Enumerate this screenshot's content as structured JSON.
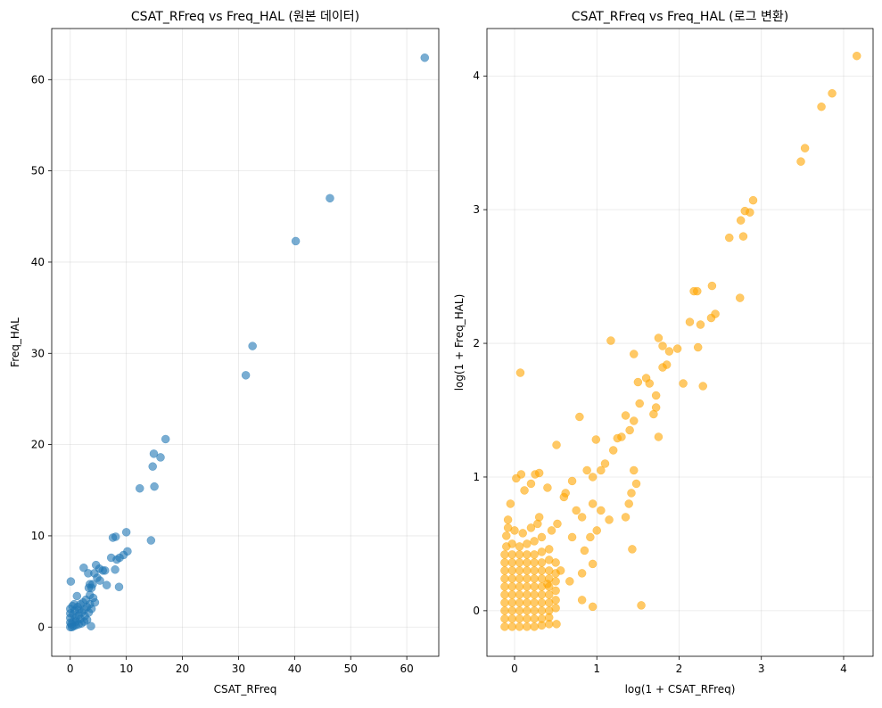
{
  "chart_data": [
    {
      "type": "scatter",
      "title": "CSAT_RFreq vs Freq_HAL (원본 데이터)",
      "xlabel": "CSAT_RFreq",
      "ylabel": "Freq_HAL",
      "xlim": [
        -3.3,
        65.7
      ],
      "ylim": [
        -3.2,
        65.6
      ],
      "xticks": [
        0,
        10,
        20,
        30,
        40,
        50,
        60
      ],
      "yticks": [
        0,
        10,
        20,
        30,
        40,
        50,
        60
      ],
      "grid": true,
      "color": "#1f77b4",
      "alpha": 0.6,
      "points": [
        [
          63.2,
          62.4
        ],
        [
          46.3,
          47.0
        ],
        [
          40.2,
          42.3
        ],
        [
          32.5,
          30.8
        ],
        [
          31.3,
          27.6
        ],
        [
          17.0,
          20.6
        ],
        [
          14.9,
          19.0
        ],
        [
          16.1,
          18.6
        ],
        [
          14.7,
          17.6
        ],
        [
          12.4,
          15.2
        ],
        [
          15.0,
          15.4
        ],
        [
          10.0,
          10.4
        ],
        [
          7.6,
          9.8
        ],
        [
          8.1,
          9.9
        ],
        [
          14.4,
          9.5
        ],
        [
          10.2,
          8.3
        ],
        [
          9.5,
          7.9
        ],
        [
          8.8,
          7.6
        ],
        [
          8.3,
          7.4
        ],
        [
          7.3,
          7.6
        ],
        [
          4.6,
          6.8
        ],
        [
          5.2,
          6.4
        ],
        [
          2.4,
          6.5
        ],
        [
          5.8,
          6.2
        ],
        [
          6.2,
          6.2
        ],
        [
          8.0,
          6.3
        ],
        [
          3.2,
          5.9
        ],
        [
          4.3,
          5.9
        ],
        [
          4.8,
          5.4
        ],
        [
          5.3,
          5.1
        ],
        [
          0.1,
          5.0
        ],
        [
          3.5,
          4.7
        ],
        [
          4.0,
          4.7
        ],
        [
          6.5,
          4.6
        ],
        [
          8.7,
          4.4
        ],
        [
          3.8,
          4.3
        ],
        [
          3.3,
          4.3
        ],
        [
          1.2,
          3.4
        ],
        [
          3.7,
          0.1
        ],
        [
          4.4,
          2.7
        ],
        [
          4.1,
          3.2
        ],
        [
          2.8,
          3.0
        ],
        [
          3.5,
          3.5
        ],
        [
          0,
          0
        ],
        [
          0.3,
          0
        ],
        [
          0.6,
          0.1
        ],
        [
          1,
          0.2
        ],
        [
          1.5,
          0.3
        ],
        [
          2,
          0.4
        ],
        [
          2.5,
          0.6
        ],
        [
          3,
          0.8
        ],
        [
          0,
          0.5
        ],
        [
          0,
          1
        ],
        [
          0,
          1.5
        ],
        [
          0,
          2
        ],
        [
          0.4,
          2.3
        ],
        [
          0.5,
          0.6
        ],
        [
          1,
          1
        ],
        [
          1.5,
          1.3
        ],
        [
          2,
          1.6
        ],
        [
          2.5,
          1.9
        ],
        [
          3,
          2.2
        ],
        [
          3.5,
          2.5
        ],
        [
          0.8,
          1.8
        ],
        [
          1.3,
          2.2
        ],
        [
          1.8,
          2.5
        ],
        [
          2.3,
          2.7
        ],
        [
          0.5,
          1.4
        ],
        [
          1,
          0.6
        ],
        [
          1.8,
          0.9
        ],
        [
          2.6,
          1.2
        ],
        [
          3.3,
          1.6
        ],
        [
          3.8,
          2.0
        ],
        [
          0.2,
          0.3
        ],
        [
          0.7,
          2.5
        ],
        [
          1.6,
          1.9
        ]
      ]
    },
    {
      "type": "scatter",
      "title": "CSAT_RFreq vs Freq_HAL (로그 변환)",
      "xlabel": "log(1 + CSAT_RFreq)",
      "ylabel": "log(1 + Freq_HAL)",
      "xlim": [
        -0.336,
        4.358
      ],
      "ylim": [
        -0.341,
        4.355
      ],
      "xticks": [
        0,
        1,
        2,
        3,
        4
      ],
      "yticks": [
        0,
        1,
        2,
        3,
        4
      ],
      "grid": true,
      "color": "#ffa500",
      "alpha": 0.6,
      "points": [
        [
          4.16,
          4.15
        ],
        [
          3.86,
          3.87
        ],
        [
          3.73,
          3.77
        ],
        [
          3.53,
          3.46
        ],
        [
          3.48,
          3.36
        ],
        [
          2.9,
          3.07
        ],
        [
          2.86,
          2.98
        ],
        [
          2.8,
          2.99
        ],
        [
          2.75,
          2.92
        ],
        [
          2.78,
          2.8
        ],
        [
          2.61,
          2.79
        ],
        [
          2.74,
          2.34
        ],
        [
          2.4,
          2.43
        ],
        [
          2.22,
          2.39
        ],
        [
          2.18,
          2.39
        ],
        [
          2.44,
          2.22
        ],
        [
          2.39,
          2.19
        ],
        [
          2.13,
          2.16
        ],
        [
          2.26,
          2.14
        ],
        [
          2.23,
          1.97
        ],
        [
          1.98,
          1.96
        ],
        [
          1.88,
          1.94
        ],
        [
          1.75,
          2.04
        ],
        [
          1.8,
          1.98
        ],
        [
          1.17,
          2.02
        ],
        [
          1.45,
          1.92
        ],
        [
          2.05,
          1.7
        ],
        [
          2.29,
          1.68
        ],
        [
          1.85,
          1.84
        ],
        [
          1.8,
          1.82
        ],
        [
          0.07,
          1.78
        ],
        [
          1.54,
          0.04
        ],
        [
          1.43,
          0.46
        ],
        [
          0.79,
          1.45
        ],
        [
          1.72,
          1.61
        ],
        [
          1.6,
          1.74
        ],
        [
          1.5,
          1.71
        ],
        [
          1.64,
          1.7
        ],
        [
          1.72,
          1.52
        ],
        [
          1.69,
          1.47
        ],
        [
          1.52,
          1.55
        ],
        [
          1.35,
          1.46
        ],
        [
          1.75,
          1.3
        ],
        [
          1.45,
          1.42
        ],
        [
          1.4,
          1.35
        ],
        [
          1.3,
          1.3
        ],
        [
          1.25,
          1.29
        ],
        [
          0.99,
          1.28
        ],
        [
          0.51,
          1.24
        ],
        [
          1.2,
          1.2
        ],
        [
          1.1,
          1.1
        ],
        [
          1.05,
          1.05
        ],
        [
          0.95,
          1.0
        ],
        [
          1.45,
          1.05
        ],
        [
          1.48,
          0.95
        ],
        [
          1.42,
          0.88
        ],
        [
          1.39,
          0.8
        ],
        [
          1.35,
          0.7
        ],
        [
          0.3,
          1.03
        ],
        [
          0.25,
          1.02
        ],
        [
          0.88,
          1.05
        ],
        [
          0.7,
          0.97
        ],
        [
          0.6,
          0.85
        ],
        [
          0.95,
          0.8
        ],
        [
          1.05,
          0.75
        ],
        [
          1.15,
          0.68
        ],
        [
          0.82,
          0.7
        ],
        [
          0.62,
          0.88
        ],
        [
          0.08,
          1.02
        ],
        [
          0.02,
          0.99
        ],
        [
          0.4,
          0.92
        ],
        [
          0.2,
          0.95
        ],
        [
          0.12,
          0.9
        ],
        [
          -0.05,
          0.8
        ],
        [
          -0.08,
          0.68
        ],
        [
          0.52,
          0.65
        ],
        [
          0.7,
          0.55
        ],
        [
          0.85,
          0.45
        ],
        [
          0.95,
          0.35
        ],
        [
          0.82,
          0.28
        ],
        [
          0.56,
          0.3
        ],
        [
          0.4,
          0.2
        ],
        [
          0.95,
          0.03
        ],
        [
          0.82,
          0.08
        ],
        [
          0.67,
          0.22
        ],
        [
          0.92,
          0.55
        ],
        [
          1.0,
          0.6
        ],
        [
          0.75,
          0.75
        ],
        [
          0.45,
          0.6
        ],
        [
          0.3,
          0.7
        ],
        [
          -0.12,
          -0.12
        ],
        [
          -0.03,
          -0.12
        ],
        [
          0.06,
          -0.12
        ],
        [
          0.15,
          -0.12
        ],
        [
          0.24,
          -0.12
        ],
        [
          0.33,
          -0.11
        ],
        [
          0.42,
          -0.1
        ],
        [
          -0.12,
          -0.06
        ],
        [
          -0.03,
          -0.06
        ],
        [
          0.06,
          -0.06
        ],
        [
          0.15,
          -0.06
        ],
        [
          0.24,
          -0.06
        ],
        [
          0.33,
          -0.06
        ],
        [
          0.42,
          -0.05
        ],
        [
          0.51,
          -0.1
        ],
        [
          -0.12,
          0
        ],
        [
          -0.03,
          0
        ],
        [
          0.06,
          0
        ],
        [
          0.15,
          0
        ],
        [
          0.24,
          0
        ],
        [
          0.33,
          0
        ],
        [
          0.42,
          0
        ],
        [
          0.5,
          0.02
        ],
        [
          -0.12,
          0.06
        ],
        [
          -0.03,
          0.06
        ],
        [
          0.06,
          0.06
        ],
        [
          0.15,
          0.06
        ],
        [
          0.24,
          0.06
        ],
        [
          0.33,
          0.06
        ],
        [
          0.42,
          0.06
        ],
        [
          0.5,
          0.08
        ],
        [
          -0.12,
          0.12
        ],
        [
          -0.03,
          0.12
        ],
        [
          0.06,
          0.12
        ],
        [
          0.15,
          0.12
        ],
        [
          0.24,
          0.12
        ],
        [
          0.33,
          0.12
        ],
        [
          0.42,
          0.12
        ],
        [
          0.5,
          0.15
        ],
        [
          -0.12,
          0.18
        ],
        [
          -0.03,
          0.18
        ],
        [
          0.06,
          0.18
        ],
        [
          0.15,
          0.18
        ],
        [
          0.24,
          0.18
        ],
        [
          0.33,
          0.18
        ],
        [
          0.42,
          0.18
        ],
        [
          0.5,
          0.22
        ],
        [
          -0.12,
          0.24
        ],
        [
          -0.03,
          0.24
        ],
        [
          0.06,
          0.24
        ],
        [
          0.15,
          0.24
        ],
        [
          0.24,
          0.24
        ],
        [
          0.33,
          0.24
        ],
        [
          0.42,
          0.24
        ],
        [
          0.5,
          0.28
        ],
        [
          -0.12,
          0.3
        ],
        [
          -0.03,
          0.3
        ],
        [
          0.06,
          0.3
        ],
        [
          0.15,
          0.3
        ],
        [
          0.24,
          0.3
        ],
        [
          0.33,
          0.3
        ],
        [
          0.42,
          0.3
        ],
        [
          0.5,
          0.36
        ],
        [
          -0.12,
          0.36
        ],
        [
          -0.03,
          0.36
        ],
        [
          0.06,
          0.36
        ],
        [
          0.15,
          0.36
        ],
        [
          0.24,
          0.36
        ],
        [
          0.33,
          0.36
        ],
        [
          0.42,
          0.38
        ],
        [
          -0.12,
          0.42
        ],
        [
          -0.03,
          0.42
        ],
        [
          0.06,
          0.42
        ],
        [
          0.15,
          0.42
        ],
        [
          0.24,
          0.42
        ],
        [
          0.33,
          0.44
        ],
        [
          0.42,
          0.46
        ],
        [
          -0.1,
          0.48
        ],
        [
          -0.03,
          0.5
        ],
        [
          0.06,
          0.48
        ],
        [
          0.15,
          0.5
        ],
        [
          0.24,
          0.52
        ],
        [
          0.33,
          0.55
        ],
        [
          -0.1,
          0.56
        ],
        [
          0.0,
          0.6
        ],
        [
          0.1,
          0.58
        ],
        [
          0.2,
          0.62
        ],
        [
          0.28,
          0.65
        ],
        [
          -0.08,
          0.62
        ]
      ]
    }
  ]
}
